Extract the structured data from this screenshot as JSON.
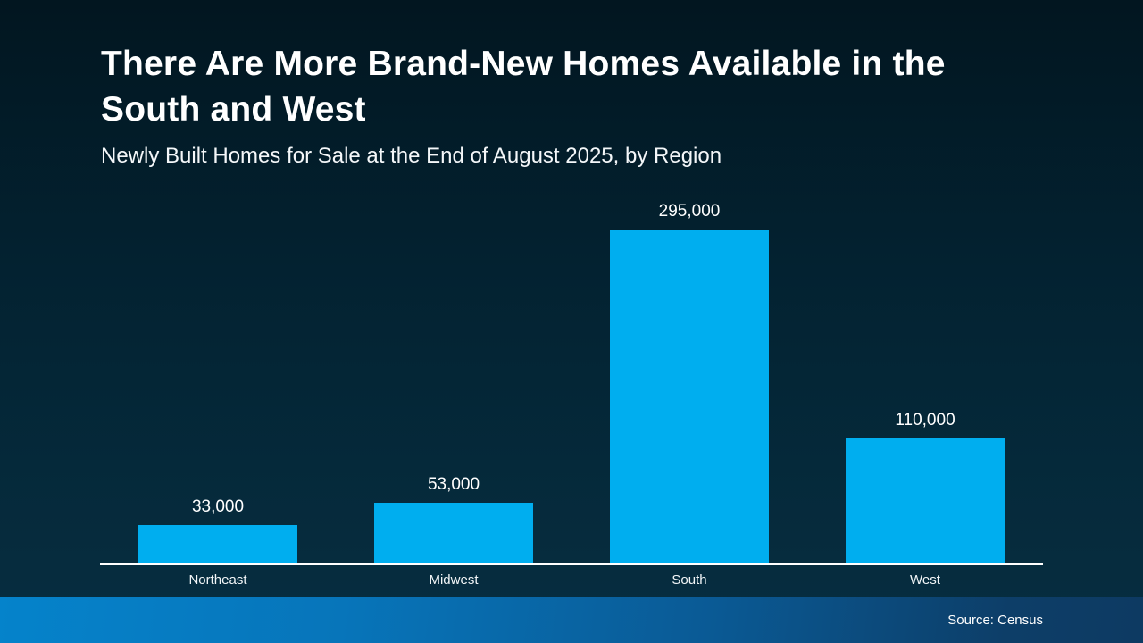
{
  "chart_data": {
    "type": "bar",
    "title": "There Are More Brand-New Homes Available in the South and West",
    "subtitle": "Newly Built Homes for Sale at the End of August 2025, by Region",
    "categories": [
      "Northeast",
      "Midwest",
      "South",
      "West"
    ],
    "values": [
      33000,
      53000,
      295000,
      110000
    ],
    "value_labels": [
      "33,000",
      "53,000",
      "295,000",
      "110,000"
    ],
    "xlabel": "",
    "ylabel": "",
    "ylim": [
      0,
      320000
    ],
    "grid": false,
    "legend": "none",
    "bar_color": "#00AEEF",
    "axis_color": "#FFFFFF",
    "label_color": "#FFFFFF"
  },
  "footer": {
    "source": "Source: Census"
  },
  "colors": {
    "background_top": "#021620",
    "background_bottom": "#072E41",
    "accent": "#00AEEF",
    "footer_gradient_left": "#0583CB",
    "footer_gradient_right": "#0D3A62",
    "text": "#FFFFFF"
  }
}
